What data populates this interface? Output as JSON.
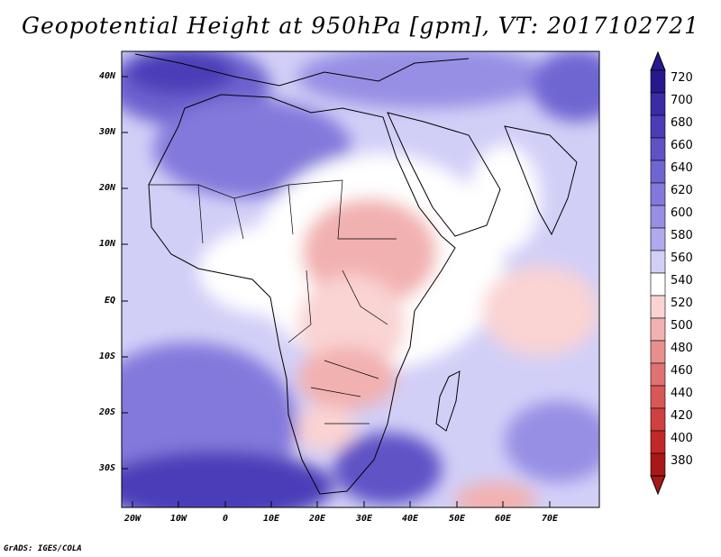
{
  "title": "Geopotential Height at 950hPa [gpm], VT: 2017102721",
  "credit": "GrADS: IGES/COLA",
  "map": {
    "lat_labels": [
      "40N",
      "30N",
      "20N",
      "10N",
      "EQ",
      "10S",
      "20S",
      "30S"
    ],
    "lon_labels": [
      "20W",
      "10W",
      "0",
      "10E",
      "20E",
      "30E",
      "40E",
      "50E",
      "60E",
      "70E"
    ],
    "lat_range": [
      -37,
      45
    ],
    "lon_range": [
      -23,
      80
    ]
  },
  "colorbar": {
    "levels": [
      "720",
      "700",
      "680",
      "660",
      "640",
      "620",
      "600",
      "580",
      "560",
      "540",
      "520",
      "500",
      "480",
      "460",
      "440",
      "420",
      "400",
      "380"
    ],
    "colors": [
      "#26198f",
      "#3a2ca6",
      "#4b3db8",
      "#5e52c6",
      "#7066d2",
      "#8379dc",
      "#978fe4",
      "#b0aaee",
      "#d2cff7",
      "#ffffff",
      "#fad3d3",
      "#f2b1b1",
      "#e89090",
      "#e07272",
      "#d85858",
      "#cf4040",
      "#c22828",
      "#a81818"
    ]
  }
}
